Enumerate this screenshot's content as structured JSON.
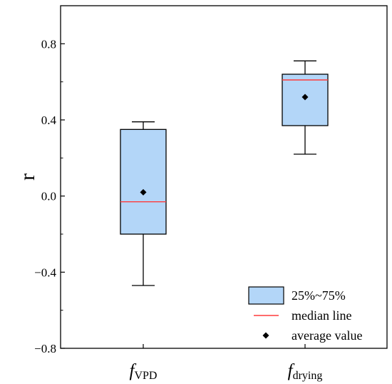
{
  "chart_data": {
    "type": "box",
    "ylabel": "r",
    "ylim": [
      -0.8,
      1.0
    ],
    "yticks": [
      -0.8,
      -0.4,
      0.0,
      0.4,
      0.8
    ],
    "ytick_labels": [
      "−0.8",
      "−0.4",
      "0.0",
      "0.4",
      "0.8"
    ],
    "categories": [
      {
        "main": "f",
        "sub": "VPD"
      },
      {
        "main": "f",
        "sub": "drying"
      }
    ],
    "boxes": [
      {
        "whisker_low": -0.47,
        "q1": -0.2,
        "median": -0.03,
        "q3": 0.35,
        "whisker_high": 0.39,
        "mean": 0.02
      },
      {
        "whisker_low": 0.22,
        "q1": 0.37,
        "median": 0.61,
        "q3": 0.64,
        "whisker_high": 0.71,
        "mean": 0.52
      }
    ],
    "legend": {
      "position": "bottom-right",
      "box_label": "25%~75%",
      "median_label": "median line",
      "mean_label": "average value"
    },
    "colors": {
      "box_fill": "#b3d6f8",
      "median": "#ff3b3b",
      "outline": "#000000"
    },
    "grid": false
  }
}
